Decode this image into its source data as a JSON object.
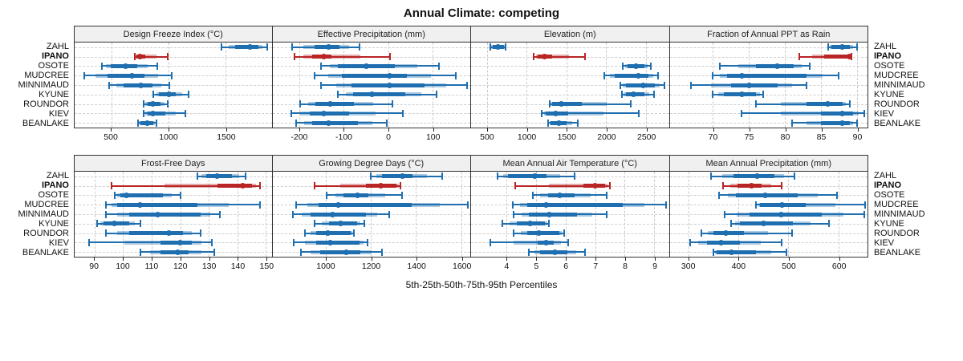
{
  "title": "Annual Climate: competing",
  "xlabel": "5th-25th-50th-75th-95th Percentiles",
  "percentile_labels": [
    "5th",
    "25th",
    "50th",
    "75th",
    "95th"
  ],
  "stations": [
    "ZAHL",
    "IPANO",
    "OSOTE",
    "MUDCREE",
    "MINNIMAUD",
    "KYUNE",
    "ROUNDOR",
    "KIEV",
    "BEANLAKE"
  ],
  "highlight_station": "IPANO",
  "colors": {
    "normal": "#1f6fb0",
    "normal_light": "rgba(31,111,176,0.38)",
    "highlight": "#b92525",
    "highlight_light": "rgba(185,37,37,0.38)",
    "header_bg": "#f0f0f0",
    "grid": "#c9c9c9",
    "frame": "#333333"
  },
  "chart_data": [
    {
      "type": "dotplot-percentile",
      "row": 0,
      "title": "Design Freeze Index (°C)",
      "xlim": [
        180,
        1900
      ],
      "ticks": [
        500,
        1000,
        1500
      ],
      "values": {
        "ZAHL": [
          1465,
          1580,
          1710,
          1785,
          1860
        ],
        "IPANO": [
          705,
          720,
          750,
          800,
          990
        ],
        "OSOTE": [
          415,
          495,
          625,
          725,
          905
        ],
        "MUDCREE": [
          265,
          465,
          680,
          790,
          1030
        ],
        "MINNIMAUD": [
          480,
          610,
          760,
          860,
          1010
        ],
        "KYUNE": [
          870,
          915,
          1000,
          1065,
          1175
        ],
        "ROUNDOR": [
          780,
          815,
          865,
          930,
          995
        ],
        "KIEV": [
          785,
          815,
          860,
          970,
          1150
        ],
        "BEANLAKE": [
          730,
          755,
          815,
          870,
          895
        ]
      }
    },
    {
      "type": "dotplot-percentile",
      "row": 0,
      "title": "Effective Precipitation (mm)",
      "xlim": [
        -260,
        185
      ],
      "ticks": [
        -200,
        -100,
        0,
        100
      ],
      "values": {
        "ZAHL": [
          -215,
          -165,
          -133,
          -110,
          -65
        ],
        "IPANO": [
          -210,
          -170,
          -145,
          -128,
          5
        ],
        "OSOTE": [
          -150,
          -112,
          -48,
          15,
          115
        ],
        "MUDCREE": [
          -165,
          -103,
          3,
          42,
          152
        ],
        "MINNIMAUD": [
          -150,
          -82,
          3,
          82,
          178
        ],
        "KYUNE": [
          -112,
          -79,
          -36,
          39,
          109
        ],
        "ROUNDOR": [
          -197,
          -163,
          -130,
          -76,
          9
        ],
        "KIEV": [
          -218,
          -176,
          -145,
          -88,
          33
        ],
        "BEANLAKE": [
          -206,
          -170,
          -133,
          -67,
          -3
        ]
      }
    },
    {
      "type": "dotplot-percentile",
      "row": 0,
      "title": "Elevation (m)",
      "xlim": [
        300,
        2790
      ],
      "ticks": [
        500,
        1000,
        1500,
        2000,
        2500
      ],
      "values": {
        "ZAHL": [
          545,
          570,
          635,
          710,
          735
        ],
        "IPANO": [
          1090,
          1140,
          1225,
          1325,
          1730
        ],
        "OSOTE": [
          2210,
          2265,
          2380,
          2480,
          2565
        ],
        "MUDCREE": [
          1975,
          2110,
          2405,
          2530,
          2650
        ],
        "MINNIMAUD": [
          2180,
          2245,
          2465,
          2615,
          2735
        ],
        "KYUNE": [
          2195,
          2245,
          2345,
          2480,
          2600
        ],
        "ROUNDOR": [
          1290,
          1320,
          1440,
          1690,
          2315
        ],
        "KIEV": [
          1190,
          1240,
          1370,
          1520,
          2415
        ],
        "BEANLAKE": [
          1270,
          1305,
          1405,
          1505,
          1645
        ]
      }
    },
    {
      "type": "dotplot-percentile",
      "row": 0,
      "title": "Fraction of Annual PPT as Rain",
      "xlim": [
        64,
        91.5
      ],
      "ticks": [
        70,
        75,
        80,
        85,
        90
      ],
      "values": {
        "ZAHL": [
          86,
          86.5,
          88,
          89,
          90
        ],
        "IPANO": [
          82,
          85.5,
          89,
          89,
          89.3
        ],
        "OSOTE": [
          71,
          76,
          79,
          81.2,
          83.5
        ],
        "MUDCREE": [
          70,
          72,
          74,
          83,
          87.5
        ],
        "MINNIMAUD": [
          67,
          72.5,
          75,
          79,
          83
        ],
        "KYUNE": [
          70,
          71.5,
          74,
          76,
          77
        ],
        "ROUNDOR": [
          76,
          83,
          86,
          88,
          89
        ],
        "KIEV": [
          74,
          85,
          88,
          89.5,
          91
        ],
        "BEANLAKE": [
          81,
          85,
          88,
          89,
          90
        ]
      }
    },
    {
      "type": "dotplot-percentile",
      "row": 1,
      "title": "Frost-Free Days",
      "xlim": [
        83,
        152
      ],
      "ticks": [
        90,
        100,
        110,
        120,
        130,
        140,
        150
      ],
      "values": {
        "ZAHL": [
          126,
          129,
          133,
          138,
          143
        ],
        "IPANO": [
          96,
          133,
          142,
          145,
          148
        ],
        "OSOTE": [
          97,
          99,
          101,
          114,
          120
        ],
        "MUDCREE": [
          94,
          98,
          106,
          126,
          148
        ],
        "MINNIMAUD": [
          94,
          102,
          112,
          127,
          134
        ],
        "KYUNE": [
          91,
          93,
          97,
          102,
          106
        ],
        "ROUNDOR": [
          94,
          102,
          116,
          121,
          127
        ],
        "KIEV": [
          88,
          113,
          120,
          124,
          131
        ],
        "BEANLAKE": [
          106,
          113,
          119,
          123,
          132
        ]
      }
    },
    {
      "type": "dotplot-percentile",
      "row": 1,
      "title": "Growing Degree Days (°C)",
      "xlim": [
        765,
        1640
      ],
      "ticks": [
        1000,
        1200,
        1400,
        1600
      ],
      "values": {
        "ZAHL": [
          1200,
          1250,
          1340,
          1385,
          1515
        ],
        "IPANO": [
          950,
          1180,
          1245,
          1315,
          1330
        ],
        "OSOTE": [
          1005,
          1080,
          1143,
          1188,
          1340
        ],
        "MUDCREE": [
          870,
          970,
          1055,
          1380,
          1630
        ],
        "MINNIMAUD": [
          855,
          935,
          1030,
          1180,
          1280
        ],
        "KYUNE": [
          950,
          1015,
          1065,
          1140,
          1170
        ],
        "ROUNDOR": [
          910,
          960,
          1010,
          1110,
          1125
        ],
        "KIEV": [
          860,
          960,
          1020,
          1150,
          1185
        ],
        "BEANLAKE": [
          890,
          975,
          1090,
          1155,
          1250
        ]
      }
    },
    {
      "type": "dotplot-percentile",
      "row": 1,
      "title": "Mean Annual Air Temperature (°C)",
      "xlim": [
        2.8,
        9.5
      ],
      "ticks": [
        4,
        5,
        6,
        7,
        8,
        9
      ],
      "values": {
        "ZAHL": [
          3.7,
          4.05,
          4.95,
          5.35,
          6.3
        ],
        "IPANO": [
          4.3,
          6.6,
          7.0,
          7.35,
          7.5
        ],
        "OSOTE": [
          4.9,
          5.4,
          5.8,
          6.3,
          7.4
        ],
        "MUDCREE": [
          4.2,
          4.7,
          5.35,
          7.95,
          9.4
        ],
        "MINNIMAUD": [
          4.25,
          4.75,
          5.45,
          6.4,
          7.4
        ],
        "KYUNE": [
          3.85,
          4.35,
          4.8,
          5.3,
          5.45
        ],
        "ROUNDOR": [
          4.25,
          4.7,
          5.1,
          5.8,
          5.95
        ],
        "KIEV": [
          3.45,
          5.05,
          5.35,
          5.6,
          6.1
        ],
        "BEANLAKE": [
          4.75,
          5.15,
          5.65,
          6.05,
          6.65
        ]
      }
    },
    {
      "type": "dotplot-percentile",
      "row": 1,
      "title": "Mean Annual Precipitation (mm)",
      "xlim": [
        263,
        658
      ],
      "ticks": [
        300,
        400,
        500,
        600
      ],
      "values": {
        "ZAHL": [
          345,
          390,
          437,
          472,
          512
        ],
        "IPANO": [
          370,
          399,
          426,
          447,
          486
        ],
        "OSOTE": [
          362,
          396,
          454,
          519,
          597
        ],
        "MUDCREE": [
          436,
          444,
          487,
          535,
          653
        ],
        "MINNIMAUD": [
          372,
          423,
          486,
          567,
          652
        ],
        "KYUNE": [
          385,
          403,
          451,
          509,
          581
        ],
        "ROUNDOR": [
          326,
          351,
          375,
          411,
          508
        ],
        "KIEV": [
          304,
          337,
          365,
          403,
          487
        ],
        "BEANLAKE": [
          350,
          356,
          387,
          436,
          496
        ]
      }
    }
  ]
}
